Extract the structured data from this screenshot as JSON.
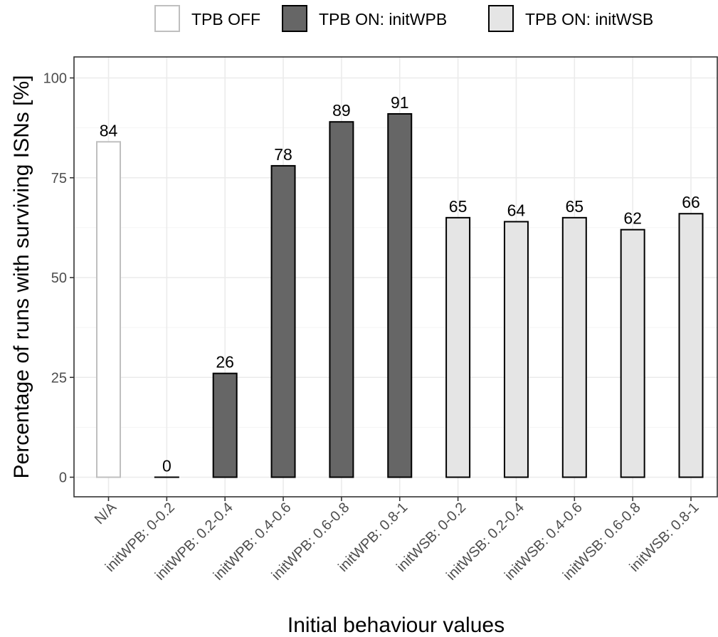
{
  "chart_data": {
    "type": "bar",
    "xlabel": "Initial behaviour values",
    "ylabel": "Percentage of runs with surviving ISNs [%]",
    "ylim": [
      0,
      100
    ],
    "yticks": [
      0,
      25,
      50,
      75,
      100
    ],
    "grid": true,
    "legend_position": "top",
    "legend": [
      {
        "label": "TPB OFF",
        "fill": "#ffffff",
        "stroke": "#bfbfbf"
      },
      {
        "label": "TPB ON: initWPB",
        "fill": "#666666",
        "stroke": "#000000"
      },
      {
        "label": "TPB ON: initWSB",
        "fill": "#e5e5e5",
        "stroke": "#000000"
      }
    ],
    "categories": [
      "N/A",
      "initWPB: 0-0.2",
      "initWPB: 0.2-0.4",
      "initWPB: 0.4-0.6",
      "initWPB: 0.6-0.8",
      "initWPB: 0.8-1",
      "initWSB: 0-0.2",
      "initWSB: 0.2-0.4",
      "initWSB: 0.4-0.6",
      "initWSB: 0.6-0.8",
      "initWSB: 0.8-1"
    ],
    "values": [
      84,
      0,
      26,
      78,
      89,
      91,
      65,
      64,
      65,
      62,
      66
    ],
    "groups": [
      0,
      1,
      1,
      1,
      1,
      1,
      2,
      2,
      2,
      2,
      2
    ]
  }
}
